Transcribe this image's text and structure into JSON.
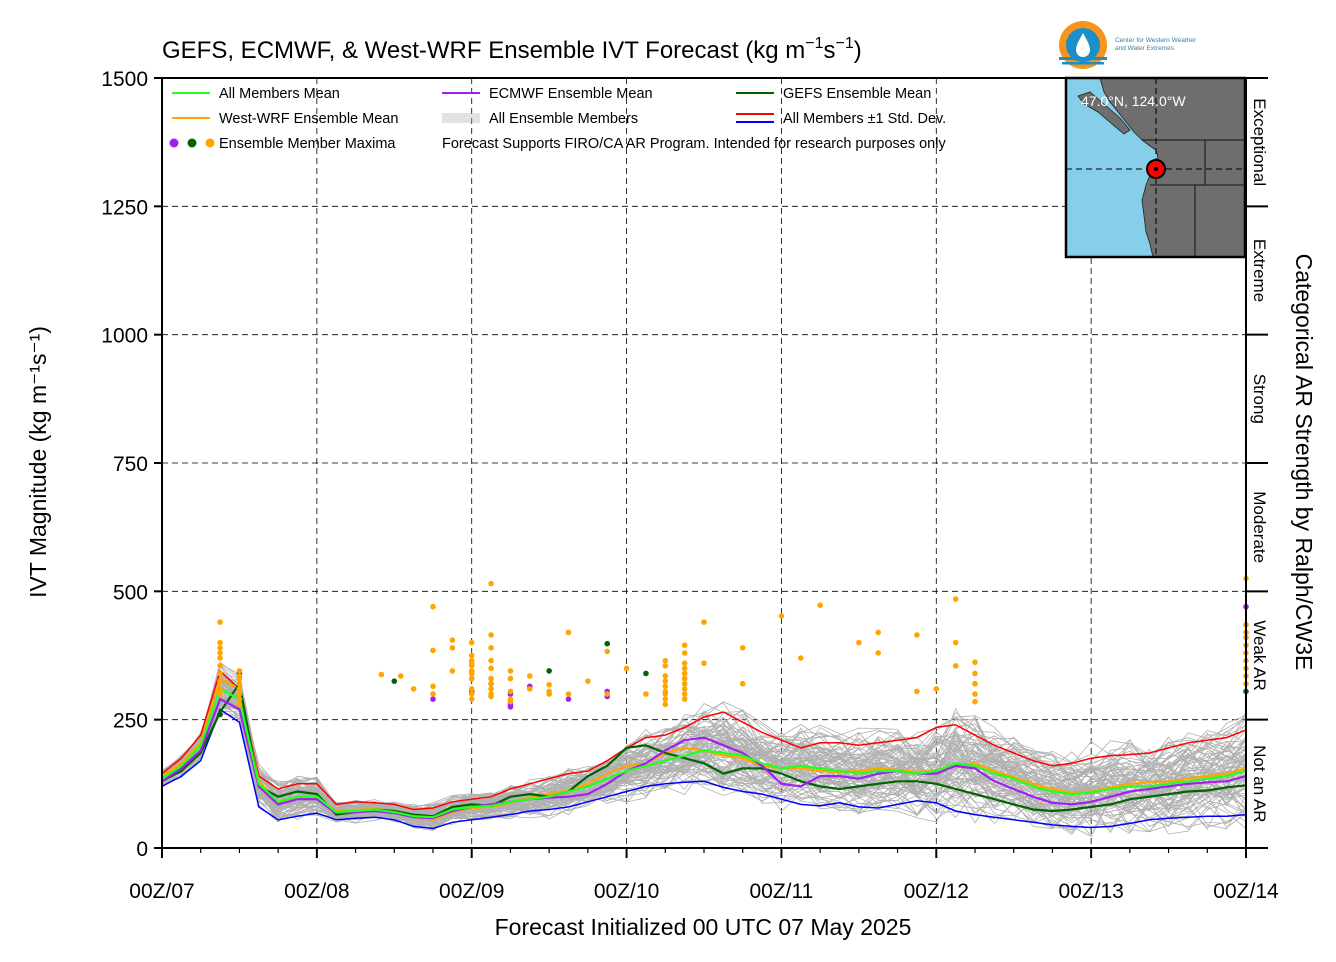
{
  "title": {
    "main": "GEFS, ECMWF, & West-WRF Ensemble IVT Forecast (kg m",
    "sup1": "−1",
    "mid": "s",
    "sup2": "−1",
    "end": ")"
  },
  "logo": {
    "line1": "Center for Western Weather",
    "line2": "and Water Extremes"
  },
  "map": {
    "coords": "47.0°N, 124.0°W",
    "ocean_color": "#87ceeb",
    "land_color": "#6e6e6e",
    "marker_color": "#ff0000"
  },
  "legend": {
    "items": [
      {
        "label": "All Members Mean",
        "color": "#22ff22"
      },
      {
        "label": "ECMWF Ensemble Mean",
        "color": "#a020f0"
      },
      {
        "label": "GEFS Ensemble Mean",
        "color": "#006400"
      },
      {
        "label": "West-WRF Ensemble Mean",
        "color": "#ffa500"
      },
      {
        "label": "All Ensemble Members",
        "color": "#b0b0b0"
      },
      {
        "label": "All Members ±1 Std. Dev.",
        "color": "#ff0000",
        "color2": "#0000ff"
      },
      {
        "label": "Ensemble Member Maxima",
        "colors": [
          "#a020f0",
          "#006400",
          "#ffa500"
        ]
      }
    ],
    "note": "Forecast Supports FIRO/CA AR Program. Intended for research purposes only"
  },
  "categories": {
    "labels": [
      "Exceptional",
      "Extreme",
      "Strong",
      "Moderate",
      "Weak AR",
      "Not an AR"
    ],
    "side_title": "Categorical AR Strength by Ralph/CW3E"
  },
  "chart_data": {
    "type": "line",
    "title": "GEFS, ECMWF, & West-WRF Ensemble IVT Forecast (kg m⁻¹s⁻¹)",
    "xlabel": "Forecast Initialized 00 UTC 07 May 2025",
    "ylabel": "IVT Magnitude (kg m⁻¹s⁻¹)",
    "ylim": [
      0,
      1500
    ],
    "xlim_hours": [
      0,
      168
    ],
    "x_ticks": [
      "00Z/07",
      "00Z/08",
      "00Z/09",
      "00Z/10",
      "00Z/11",
      "00Z/12",
      "00Z/13",
      "00Z/14"
    ],
    "y_ticks": [
      0,
      250,
      500,
      750,
      1000,
      1250,
      1500
    ],
    "grid": true,
    "legend_position": "top-left",
    "x_hours": [
      0,
      3,
      6,
      9,
      12,
      15,
      18,
      21,
      24,
      27,
      30,
      33,
      36,
      39,
      42,
      45,
      48,
      51,
      54,
      57,
      60,
      63,
      66,
      69,
      72,
      75,
      78,
      81,
      84,
      87,
      90,
      93,
      96,
      99,
      102,
      105,
      108,
      111,
      114,
      117,
      120,
      123,
      126,
      129,
      132,
      135,
      138,
      141,
      144,
      147,
      150,
      153,
      156,
      159,
      162,
      165,
      168
    ],
    "series": [
      {
        "name": "All Members Mean",
        "color": "#22ff22",
        "values": [
          135,
          160,
          200,
          310,
          290,
          125,
          90,
          100,
          100,
          70,
          72,
          75,
          70,
          62,
          60,
          75,
          80,
          82,
          90,
          95,
          100,
          110,
          120,
          135,
          150,
          160,
          170,
          180,
          190,
          185,
          180,
          165,
          155,
          160,
          155,
          150,
          145,
          150,
          150,
          145,
          150,
          165,
          160,
          145,
          135,
          120,
          110,
          105,
          108,
          115,
          120,
          120,
          125,
          130,
          135,
          140,
          150
        ]
      },
      {
        "name": "ECMWF Ensemble Mean",
        "color": "#a020f0",
        "values": [
          130,
          155,
          190,
          290,
          270,
          120,
          85,
          95,
          95,
          68,
          70,
          72,
          68,
          60,
          58,
          72,
          80,
          85,
          90,
          95,
          98,
          100,
          105,
          125,
          150,
          165,
          190,
          210,
          215,
          200,
          185,
          160,
          125,
          120,
          140,
          140,
          135,
          145,
          150,
          145,
          145,
          160,
          155,
          130,
          115,
          100,
          88,
          85,
          90,
          100,
          110,
          115,
          120,
          125,
          128,
          130,
          140
        ]
      },
      {
        "name": "GEFS Ensemble Mean",
        "color": "#006400",
        "values": [
          130,
          150,
          185,
          265,
          320,
          120,
          100,
          110,
          105,
          65,
          70,
          75,
          72,
          65,
          62,
          80,
          85,
          82,
          100,
          105,
          100,
          110,
          140,
          160,
          195,
          200,
          185,
          175,
          165,
          145,
          155,
          155,
          145,
          130,
          120,
          115,
          120,
          125,
          130,
          130,
          125,
          115,
          105,
          95,
          85,
          75,
          72,
          75,
          80,
          85,
          95,
          100,
          105,
          110,
          112,
          118,
          122
        ]
      },
      {
        "name": "West-WRF Ensemble Mean",
        "color": "#ffa500",
        "values": [
          140,
          165,
          205,
          330,
          310,
          130,
          88,
          100,
          98,
          72,
          74,
          76,
          72,
          60,
          55,
          70,
          78,
          80,
          88,
          98,
          105,
          112,
          125,
          145,
          160,
          165,
          185,
          195,
          190,
          180,
          175,
          160,
          155,
          155,
          150,
          148,
          150,
          155,
          152,
          148,
          150,
          160,
          165,
          150,
          138,
          125,
          115,
          108,
          110,
          118,
          125,
          128,
          130,
          135,
          140,
          145,
          155
        ]
      },
      {
        "name": "All Members +1 Std. Dev.",
        "color": "#ff0000",
        "values": [
          145,
          175,
          220,
          345,
          310,
          140,
          115,
          125,
          125,
          85,
          90,
          88,
          85,
          75,
          78,
          90,
          95,
          100,
          115,
          125,
          135,
          145,
          150,
          170,
          195,
          215,
          220,
          235,
          255,
          265,
          245,
          225,
          210,
          195,
          205,
          205,
          200,
          205,
          210,
          215,
          235,
          240,
          220,
          200,
          185,
          170,
          160,
          165,
          175,
          180,
          182,
          185,
          195,
          205,
          210,
          215,
          230
        ]
      },
      {
        "name": "All Members −1 Std. Dev.",
        "color": "#0000ff",
        "values": [
          120,
          140,
          170,
          270,
          245,
          80,
          55,
          62,
          68,
          55,
          58,
          60,
          55,
          42,
          38,
          50,
          55,
          60,
          65,
          72,
          75,
          80,
          90,
          100,
          110,
          120,
          125,
          128,
          130,
          118,
          110,
          105,
          95,
          85,
          82,
          88,
          80,
          78,
          85,
          92,
          88,
          72,
          65,
          60,
          55,
          50,
          45,
          42,
          40,
          42,
          48,
          55,
          58,
          60,
          62,
          62,
          65
        ]
      }
    ],
    "std_dev_label": "All Members ±1 Std. Dev.",
    "ensemble_maxima": {
      "ECMWF": [
        [
          42,
          290
        ],
        [
          48,
          330
        ],
        [
          48,
          305
        ],
        [
          51,
          320
        ],
        [
          54,
          300
        ],
        [
          54,
          280
        ],
        [
          54,
          275
        ],
        [
          57,
          315
        ],
        [
          63,
          290
        ],
        [
          69,
          295
        ],
        [
          69,
          305
        ],
        [
          168,
          470
        ]
      ],
      "GEFS": [
        [
          9,
          260
        ],
        [
          12,
          340
        ],
        [
          12,
          300
        ],
        [
          36,
          325
        ],
        [
          60,
          345
        ],
        [
          69,
          398
        ],
        [
          75,
          340
        ],
        [
          168,
          305
        ]
      ],
      "West-WRF": [
        [
          9,
          440
        ],
        [
          9,
          400
        ],
        [
          9,
          390
        ],
        [
          9,
          380
        ],
        [
          9,
          370
        ],
        [
          9,
          355
        ],
        [
          9,
          340
        ],
        [
          9,
          325
        ],
        [
          9,
          310
        ],
        [
          9,
          300
        ],
        [
          12,
          345
        ],
        [
          12,
          335
        ],
        [
          12,
          330
        ],
        [
          12,
          320
        ],
        [
          12,
          310
        ],
        [
          12,
          305
        ],
        [
          12,
          300
        ],
        [
          12,
          290
        ],
        [
          12,
          280
        ],
        [
          34,
          338
        ],
        [
          37,
          335
        ],
        [
          39,
          310
        ],
        [
          42,
          470
        ],
        [
          45,
          345
        ],
        [
          45,
          405
        ],
        [
          45,
          390
        ],
        [
          42,
          385
        ],
        [
          42,
          315
        ],
        [
          42,
          300
        ],
        [
          48,
          360
        ],
        [
          48,
          345
        ],
        [
          48,
          375
        ],
        [
          48,
          365
        ],
        [
          48,
          355
        ],
        [
          48,
          340
        ],
        [
          48,
          330
        ],
        [
          48,
          310
        ],
        [
          48,
          300
        ],
        [
          48,
          290
        ],
        [
          48,
          400
        ],
        [
          51,
          515
        ],
        [
          51,
          415
        ],
        [
          51,
          390
        ],
        [
          51,
          365
        ],
        [
          51,
          350
        ],
        [
          51,
          330
        ],
        [
          51,
          320
        ],
        [
          51,
          310
        ],
        [
          51,
          300
        ],
        [
          51,
          295
        ],
        [
          54,
          345
        ],
        [
          54,
          330
        ],
        [
          54,
          305
        ],
        [
          54,
          290
        ],
        [
          54,
          285
        ],
        [
          57,
          335
        ],
        [
          57,
          310
        ],
        [
          60,
          318
        ],
        [
          60,
          305
        ],
        [
          60,
          300
        ],
        [
          63,
          420
        ],
        [
          63,
          300
        ],
        [
          66,
          325
        ],
        [
          69,
          383
        ],
        [
          69,
          300
        ],
        [
          72,
          350
        ],
        [
          75,
          300
        ],
        [
          78,
          365
        ],
        [
          78,
          355
        ],
        [
          78,
          335
        ],
        [
          78,
          325
        ],
        [
          78,
          315
        ],
        [
          78,
          305
        ],
        [
          78,
          300
        ],
        [
          78,
          290
        ],
        [
          78,
          280
        ],
        [
          81,
          395
        ],
        [
          81,
          380
        ],
        [
          81,
          360
        ],
        [
          81,
          350
        ],
        [
          81,
          340
        ],
        [
          81,
          330
        ],
        [
          81,
          320
        ],
        [
          81,
          310
        ],
        [
          81,
          300
        ],
        [
          81,
          290
        ],
        [
          84,
          440
        ],
        [
          84,
          360
        ],
        [
          90,
          390
        ],
        [
          90,
          320
        ],
        [
          96,
          452
        ],
        [
          99,
          370
        ],
        [
          102,
          473
        ],
        [
          108,
          400
        ],
        [
          111,
          420
        ],
        [
          111,
          380
        ],
        [
          117,
          305
        ],
        [
          117,
          415
        ],
        [
          120,
          310
        ],
        [
          123,
          485
        ],
        [
          123,
          400
        ],
        [
          123,
          355
        ],
        [
          126,
          362
        ],
        [
          126,
          340
        ],
        [
          126,
          320
        ],
        [
          126,
          300
        ],
        [
          126,
          285
        ],
        [
          168,
          525
        ],
        [
          168,
          435
        ],
        [
          168,
          420
        ],
        [
          168,
          410
        ],
        [
          168,
          395
        ],
        [
          168,
          380
        ],
        [
          168,
          365
        ],
        [
          168,
          350
        ],
        [
          168,
          335
        ],
        [
          168,
          320
        ]
      ]
    }
  }
}
